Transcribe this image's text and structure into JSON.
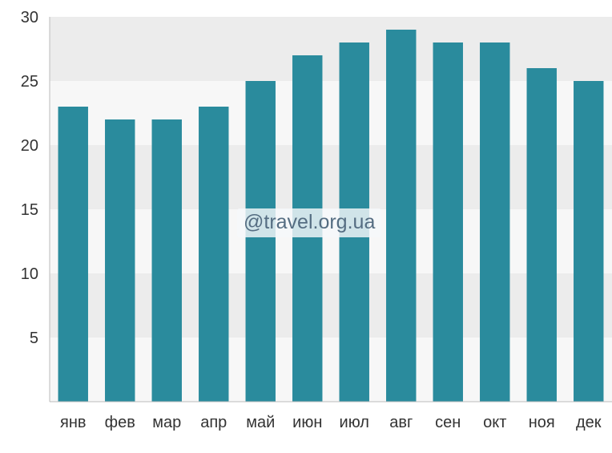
{
  "chart_data": {
    "type": "bar",
    "categories": [
      "янв",
      "фев",
      "мар",
      "апр",
      "май",
      "июн",
      "июл",
      "авг",
      "сен",
      "окт",
      "ноя",
      "дек"
    ],
    "values": [
      23,
      22,
      22,
      23,
      25,
      27,
      28,
      29,
      28,
      28,
      26,
      25
    ],
    "ylim": [
      0,
      30
    ],
    "yticks": [
      5,
      10,
      15,
      20,
      25,
      30
    ],
    "grid": true,
    "legend": "none",
    "title": "",
    "xlabel": "",
    "ylabel": ""
  },
  "watermark": "@travel.org.ua",
  "colors": {
    "bar": "#2a8b9d",
    "band_shaded": "#ececec",
    "band_light": "#f7f7f7",
    "axis": "#bbbbbb",
    "text": "#333333"
  }
}
